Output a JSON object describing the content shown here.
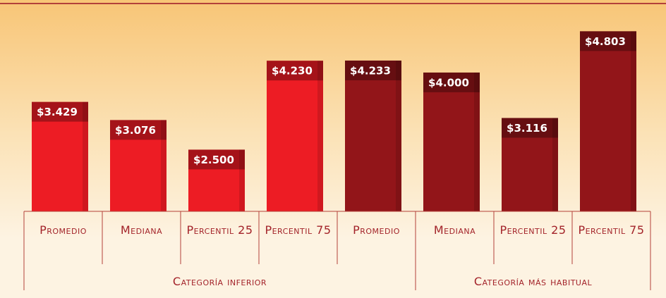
{
  "chart_data": {
    "type": "bar",
    "ylim": [
      1300,
      5000
    ],
    "groups": [
      {
        "name": "Categoría inferior",
        "color": "#ed1c24",
        "categories": [
          "Promedio",
          "Mediana",
          "Percentil 25",
          "Percentil 75"
        ],
        "values": [
          3429,
          3076,
          2500,
          4230
        ],
        "value_labels": [
          "$3.429",
          "$3.076",
          "$2.500",
          "$4.230"
        ]
      },
      {
        "name": "Categoría más habitual",
        "color": "#921519",
        "categories": [
          "Promedio",
          "Mediana",
          "Percentil 25",
          "Percentil 75"
        ],
        "values": [
          4233,
          4000,
          3116,
          4803
        ],
        "value_labels": [
          "$4.233",
          "$4.000",
          "$3.116",
          "$4.803"
        ]
      }
    ]
  }
}
